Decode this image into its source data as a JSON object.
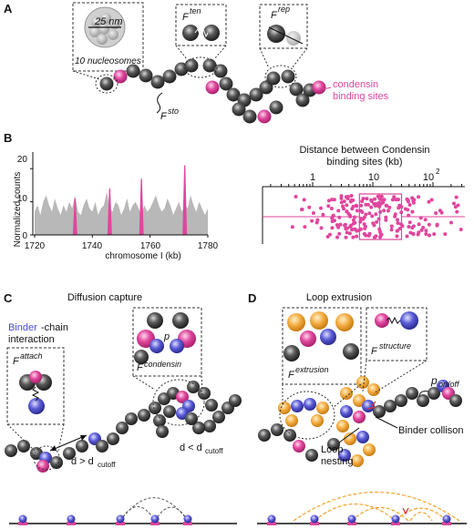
{
  "panels": {
    "A": {
      "label": "A",
      "inset_size": "25 nm",
      "inset_caption": "10 nucleosomes",
      "force_ten": "F",
      "force_ten_sup": "ten",
      "force_rep": "F",
      "force_rep_sup": "rep",
      "force_sto": "F",
      "force_sto_sup": "sto",
      "condensin_label_1": "condensin",
      "condensin_label_2": "binding sites"
    },
    "B": {
      "label": "B",
      "ylabel": "Normalized counts",
      "xlabel": "chromosome I (kb)",
      "yticks": [
        "0",
        "10",
        "20"
      ],
      "xticks": [
        "1720",
        "1740",
        "1760",
        "1780"
      ],
      "right_title_1": "Distance between Condensin",
      "right_title_2": "binding sites (kb)",
      "log_ticks": [
        "1",
        "10",
        "10"
      ],
      "log_tick_sup": "2"
    },
    "C": {
      "label": "C",
      "title": "Diffusion capture",
      "binder_word": "Binder",
      "binder_rest": "-chain",
      "interaction": "interaction",
      "force_attach": "F",
      "force_attach_sup": "attach",
      "force_condensin": "F",
      "force_condensin_sup": "condensin",
      "p_label": "p",
      "d_gt": "d > d",
      "d_lt": "d < d",
      "cutoff": "cutoff"
    },
    "D": {
      "label": "D",
      "title": "Loop extrusion",
      "force_extrusion": "F",
      "force_extrusion_sup": "extrusion",
      "force_structure": "F",
      "force_structure_sup": "structure",
      "p_onoff": "p",
      "p_onoff_sub": "on/off",
      "binder_collision": "Binder collison",
      "loop_nesting_1": "Loop",
      "loop_nesting_2": "nesting"
    }
  },
  "colors": {
    "nucleosome": "#4a4a4a",
    "magenta": "#e0469d",
    "binder_blue": "#5b5bd6",
    "orange": "#f2a93b",
    "coverage_gray": "#b8b8b8"
  },
  "chart_data": [
    {
      "type": "area",
      "xlabel": "chromosome I (kb)",
      "ylabel": "Normalized counts",
      "xlim": [
        1720,
        1780
      ],
      "ylim": [
        0,
        25
      ],
      "x": [
        1720,
        1721,
        1722,
        1723,
        1724,
        1725,
        1726,
        1727,
        1728,
        1729,
        1730,
        1731,
        1732,
        1733,
        1734,
        1735,
        1736,
        1737,
        1738,
        1739,
        1740,
        1741,
        1742,
        1743,
        1744,
        1745,
        1746,
        1747,
        1748,
        1749,
        1750,
        1751,
        1752,
        1753,
        1754,
        1755,
        1756,
        1757,
        1758,
        1759,
        1760,
        1761,
        1762,
        1763,
        1764,
        1765,
        1766,
        1767,
        1768,
        1769,
        1770,
        1771,
        1772,
        1773,
        1774,
        1775,
        1776,
        1777,
        1778,
        1779,
        1780
      ],
      "values": [
        7,
        9,
        6,
        10,
        12,
        9,
        7,
        11,
        8,
        6,
        9,
        7,
        10,
        8,
        12,
        7,
        6,
        9,
        11,
        8,
        7,
        10,
        6,
        8,
        9,
        13,
        8,
        7,
        10,
        9,
        6,
        8,
        11,
        7,
        9,
        10,
        8,
        6,
        9,
        7,
        8,
        10,
        12,
        9,
        7,
        8,
        11,
        9,
        6,
        8,
        10,
        7,
        9,
        8,
        12,
        9,
        7,
        10,
        8,
        6,
        8
      ],
      "peaks": [
        {
          "x": 1734,
          "value": 11
        },
        {
          "x": 1746,
          "value": 14
        },
        {
          "x": 1757,
          "value": 17
        },
        {
          "x": 1772,
          "value": 21
        }
      ]
    },
    {
      "type": "scatter",
      "title": "Distance between Condensin binding sites (kb)",
      "xscale": "log",
      "xlim": [
        0.3,
        300
      ],
      "box": {
        "q1": 6,
        "median": 13,
        "q3": 30,
        "whisker_low": 0.3,
        "whisker_high": 300
      }
    }
  ]
}
